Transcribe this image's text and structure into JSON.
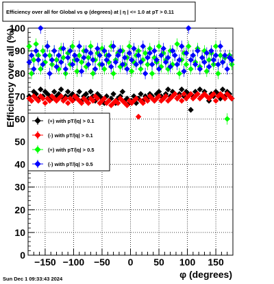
{
  "chart_data": {
    "type": "scatter",
    "title": "Efficiency over all for Global vs φ (degrees) at | η | <= 1.0 at pT > 0.11",
    "xlabel": "φ (degrees)",
    "ylabel": "Efficiency over all (%)",
    "xlim": [
      -180,
      180
    ],
    "ylim": [
      0,
      100
    ],
    "x_ticks": [
      -150,
      -100,
      -50,
      0,
      50,
      100,
      150
    ],
    "x_tick_labels": [
      "−150",
      "−100",
      "−50",
      "0",
      "50",
      "100",
      "150"
    ],
    "y_ticks": [
      0,
      10,
      20,
      30,
      40,
      50,
      60,
      70,
      80,
      90,
      100
    ],
    "y_tick_labels": [
      "0",
      "10",
      "20",
      "30",
      "40",
      "50",
      "60",
      "70",
      "80",
      "90",
      "100"
    ],
    "grid": true,
    "legend_position": "left-middle",
    "series": [
      {
        "name": "(+) with pT/|q| > 0.1",
        "color": "#000000",
        "marker": "diamond",
        "x": [
          -178,
          -174,
          -170,
          -166,
          -162,
          -158,
          -154,
          -150,
          -146,
          -142,
          -138,
          -134,
          -130,
          -126,
          -122,
          -118,
          -114,
          -110,
          -106,
          -102,
          -98,
          -94,
          -90,
          -86,
          -82,
          -78,
          -74,
          -70,
          -66,
          -62,
          -58,
          -54,
          -50,
          -46,
          -42,
          -38,
          -34,
          -30,
          -26,
          -22,
          -18,
          -14,
          -10,
          -6,
          -2,
          2,
          6,
          10,
          14,
          18,
          22,
          26,
          30,
          34,
          38,
          42,
          46,
          50,
          54,
          58,
          62,
          66,
          70,
          74,
          78,
          82,
          86,
          90,
          94,
          98,
          102,
          106,
          110,
          114,
          118,
          122,
          126,
          130,
          134,
          138,
          142,
          146,
          150,
          154,
          158,
          162,
          166,
          170,
          174,
          178
        ],
        "y": [
          70,
          68,
          72,
          71,
          69,
          73,
          70,
          72,
          71,
          70,
          69,
          72,
          70,
          71,
          73,
          69,
          70,
          72,
          70,
          71,
          69,
          70,
          72,
          68,
          70,
          71,
          69,
          72,
          70,
          68,
          71,
          70,
          69,
          67,
          70,
          68,
          69,
          71,
          67,
          69,
          70,
          72,
          68,
          69,
          67,
          68,
          70,
          67,
          69,
          71,
          68,
          70,
          69,
          71,
          70,
          68,
          71,
          72,
          70,
          69,
          71,
          73,
          70,
          72,
          71,
          69,
          71,
          73,
          70,
          72,
          71,
          64,
          70,
          72,
          71,
          73,
          70,
          72,
          70,
          68,
          71,
          70,
          72,
          71,
          69,
          73,
          70,
          72,
          71,
          69
        ]
      },
      {
        "name": "(-) with pT/|q| > 0.1",
        "color": "#ff0000",
        "marker": "diamond",
        "x": [
          -178,
          -174,
          -170,
          -166,
          -162,
          -158,
          -154,
          -150,
          -146,
          -142,
          -138,
          -134,
          -130,
          -126,
          -122,
          -118,
          -114,
          -110,
          -106,
          -102,
          -98,
          -94,
          -90,
          -86,
          -82,
          -78,
          -74,
          -70,
          -66,
          -62,
          -58,
          -54,
          -50,
          -46,
          -42,
          -38,
          -34,
          -30,
          -26,
          -22,
          -18,
          -14,
          -10,
          -6,
          -2,
          2,
          6,
          10,
          14,
          18,
          22,
          26,
          30,
          34,
          38,
          42,
          46,
          50,
          54,
          58,
          62,
          66,
          70,
          74,
          78,
          82,
          86,
          90,
          94,
          98,
          102,
          106,
          110,
          114,
          118,
          122,
          126,
          130,
          134,
          138,
          142,
          146,
          150,
          154,
          158,
          162,
          166,
          170,
          174,
          178
        ],
        "y": [
          69,
          68,
          70,
          69,
          68,
          70,
          69,
          67,
          69,
          68,
          70,
          69,
          68,
          69,
          70,
          68,
          69,
          67,
          69,
          68,
          70,
          69,
          68,
          67,
          69,
          68,
          67,
          69,
          68,
          70,
          69,
          67,
          68,
          69,
          67,
          68,
          66,
          67,
          68,
          67,
          69,
          68,
          67,
          66,
          68,
          67,
          68,
          69,
          61,
          68,
          67,
          69,
          68,
          70,
          69,
          68,
          69,
          70,
          68,
          69,
          70,
          68,
          69,
          70,
          71,
          69,
          70,
          68,
          71,
          69,
          70,
          71,
          69,
          70,
          71,
          69,
          70,
          71,
          70,
          69,
          70,
          71,
          68,
          70,
          71,
          70,
          69,
          71,
          70,
          69
        ]
      },
      {
        "name": "(+) with pT/|q| > 0.5",
        "color": "#00ff00",
        "marker": "diamond",
        "x": [
          -178,
          -174,
          -170,
          -166,
          -162,
          -158,
          -154,
          -150,
          -146,
          -142,
          -138,
          -134,
          -130,
          -126,
          -122,
          -118,
          -114,
          -110,
          -106,
          -102,
          -98,
          -94,
          -90,
          -86,
          -82,
          -78,
          -74,
          -70,
          -66,
          -62,
          -58,
          -54,
          -50,
          -46,
          -42,
          -38,
          -34,
          -30,
          -26,
          -22,
          -18,
          -14,
          -10,
          -6,
          -2,
          2,
          6,
          10,
          14,
          18,
          22,
          26,
          30,
          34,
          38,
          42,
          46,
          50,
          54,
          58,
          62,
          66,
          70,
          74,
          78,
          82,
          86,
          90,
          94,
          98,
          102,
          106,
          110,
          114,
          118,
          122,
          126,
          130,
          134,
          138,
          142,
          146,
          150,
          154,
          158,
          162,
          166,
          170,
          174,
          178
        ],
        "y": [
          92,
          80,
          86,
          93,
          88,
          82,
          90,
          85,
          92,
          88,
          84,
          90,
          86,
          82,
          91,
          87,
          80,
          89,
          84,
          92,
          86,
          81,
          88,
          85,
          90,
          83,
          87,
          92,
          80,
          86,
          89,
          84,
          91,
          82,
          88,
          85,
          92,
          80,
          86,
          89,
          83,
          90,
          84,
          87,
          92,
          81,
          85,
          88,
          90,
          82,
          86,
          89,
          84,
          91,
          80,
          87,
          85,
          92,
          83,
          89,
          86,
          82,
          90,
          84,
          88,
          93,
          80,
          86,
          89,
          84,
          92,
          82,
          88,
          85,
          91,
          83,
          87,
          90,
          81,
          86,
          89,
          84,
          92,
          80,
          88,
          85,
          87,
          60,
          88,
          84
        ]
      },
      {
        "name": "(-) with pT/|q| > 0.5",
        "color": "#0000ff",
        "marker": "diamond",
        "x": [
          -178,
          -174,
          -170,
          -166,
          -162,
          -158,
          -154,
          -150,
          -146,
          -142,
          -138,
          -134,
          -130,
          -126,
          -122,
          -118,
          -114,
          -110,
          -106,
          -102,
          -98,
          -94,
          -90,
          -86,
          -82,
          -78,
          -74,
          -70,
          -66,
          -62,
          -58,
          -54,
          -50,
          -46,
          -42,
          -38,
          -34,
          -30,
          -26,
          -22,
          -18,
          -14,
          -10,
          -6,
          -2,
          2,
          6,
          10,
          14,
          18,
          22,
          26,
          30,
          34,
          38,
          42,
          46,
          50,
          54,
          58,
          62,
          66,
          70,
          74,
          78,
          82,
          86,
          90,
          94,
          98,
          102,
          106,
          110,
          114,
          118,
          122,
          126,
          130,
          134,
          138,
          142,
          146,
          150,
          154,
          158,
          162,
          166,
          170,
          174,
          178
        ],
        "y": [
          85,
          88,
          82,
          90,
          86,
          100,
          84,
          88,
          92,
          80,
          86,
          90,
          83,
          88,
          85,
          91,
          82,
          87,
          90,
          84,
          88,
          86,
          92,
          81,
          87,
          90,
          84,
          89,
          86,
          82,
          91,
          88,
          84,
          90,
          86,
          88,
          83,
          92,
          85,
          88,
          90,
          84,
          87,
          82,
          89,
          86,
          91,
          84,
          88,
          85,
          92,
          80,
          87,
          89,
          84,
          90,
          86,
          82,
          88,
          91,
          85,
          87,
          83,
          90,
          88,
          84,
          86,
          92,
          81,
          89,
          100,
          86,
          88,
          84,
          90,
          82,
          87,
          85,
          89,
          83,
          90,
          86,
          88,
          84,
          92,
          85,
          88,
          82,
          87,
          86
        ]
      }
    ]
  },
  "timestamp": "Sun Dec  1 09:33:43 2024"
}
